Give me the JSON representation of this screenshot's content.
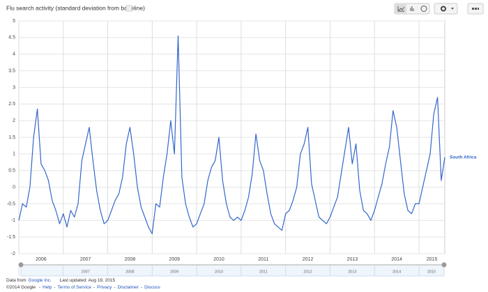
{
  "chart_data": {
    "type": "line",
    "title": "Flu search activity (standard deviation from baseline)",
    "x": [
      2006,
      2006.083,
      2006.167,
      2006.25,
      2006.333,
      2006.417,
      2006.5,
      2006.583,
      2006.667,
      2006.75,
      2006.833,
      2006.917,
      2007,
      2007.083,
      2007.167,
      2007.25,
      2007.333,
      2007.417,
      2007.5,
      2007.583,
      2007.667,
      2007.75,
      2007.833,
      2007.917,
      2008,
      2008.083,
      2008.167,
      2008.25,
      2008.333,
      2008.417,
      2008.5,
      2008.583,
      2008.667,
      2008.75,
      2008.833,
      2008.917,
      2009,
      2009.083,
      2009.167,
      2009.25,
      2009.333,
      2009.417,
      2009.5,
      2009.583,
      2009.667,
      2009.75,
      2009.833,
      2009.917,
      2010,
      2010.083,
      2010.167,
      2010.25,
      2010.333,
      2010.417,
      2010.5,
      2010.583,
      2010.667,
      2010.75,
      2010.833,
      2010.917,
      2011,
      2011.083,
      2011.167,
      2011.25,
      2011.333,
      2011.417,
      2011.5,
      2011.583,
      2011.667,
      2011.75,
      2011.833,
      2011.917,
      2012,
      2012.083,
      2012.167,
      2012.25,
      2012.333,
      2012.417,
      2012.5,
      2012.583,
      2012.667,
      2012.75,
      2012.833,
      2012.917,
      2013,
      2013.083,
      2013.167,
      2013.25,
      2013.333,
      2013.417,
      2013.5,
      2013.583,
      2013.667,
      2013.75,
      2013.833,
      2013.917,
      2014,
      2014.083,
      2014.167,
      2014.25,
      2014.333,
      2014.417,
      2014.5,
      2014.583,
      2014.667,
      2014.75,
      2014.833,
      2014.917,
      2015,
      2015.083,
      2015.167,
      2015.25,
      2015.333,
      2015.417,
      2015.5,
      2015.58
    ],
    "series": [
      {
        "name": "South Africa",
        "color": "#3366cc",
        "values": [
          -1.0,
          -0.5,
          -0.6,
          0.0,
          1.5,
          2.35,
          0.7,
          0.5,
          0.2,
          -0.4,
          -0.7,
          -1.1,
          -0.8,
          -1.2,
          -0.7,
          -0.9,
          -0.5,
          0.8,
          1.3,
          1.8,
          0.8,
          -0.1,
          -0.7,
          -1.1,
          -1.0,
          -0.7,
          -0.4,
          -0.2,
          0.3,
          1.3,
          1.8,
          1.0,
          0.0,
          -0.6,
          -0.9,
          -1.2,
          -1.4,
          -0.5,
          -0.6,
          0.3,
          1.0,
          2.0,
          1.0,
          4.55,
          0.3,
          -0.5,
          -0.9,
          -1.2,
          -1.1,
          -0.8,
          -0.5,
          0.2,
          0.6,
          0.8,
          1.5,
          0.2,
          -0.5,
          -0.9,
          -1.0,
          -0.9,
          -1.0,
          -0.7,
          -0.3,
          0.4,
          1.6,
          0.8,
          0.5,
          -0.2,
          -0.8,
          -1.1,
          -1.2,
          -1.3,
          -0.8,
          -0.7,
          -0.4,
          0.0,
          1.0,
          1.3,
          1.8,
          0.1,
          -0.4,
          -0.9,
          -1.0,
          -1.1,
          -0.9,
          -0.6,
          -0.3,
          0.4,
          1.1,
          1.8,
          0.7,
          1.3,
          -0.1,
          -0.7,
          -0.8,
          -1.0,
          -0.7,
          -0.3,
          0.1,
          0.7,
          1.2,
          2.3,
          1.8,
          0.8,
          -0.2,
          -0.7,
          -0.8,
          -0.5,
          -0.5,
          0.0,
          0.5,
          1.0,
          2.2,
          2.7,
          0.2,
          0.9
        ]
      }
    ],
    "xlim": [
      2006,
      2015.58
    ],
    "xticks": [
      2006,
      2007,
      2008,
      2009,
      2010,
      2011,
      2012,
      2013,
      2014,
      2015
    ],
    "ylim": [
      -2,
      5
    ],
    "yticks": [
      -2,
      -1.5,
      -1,
      -0.5,
      0,
      0.5,
      1,
      1.5,
      2,
      2.5,
      3,
      3.5,
      4,
      4.5,
      5
    ],
    "grid": true,
    "footer": {
      "source_prefix": "Data from",
      "source": "Google Inc.",
      "updated": "Last updated: Aug 19, 2015",
      "copyright": "©2014 Google",
      "separator": "-",
      "links": [
        "Help",
        "Terms of Service",
        "Privacy",
        "Disclaimer",
        "Discuss"
      ]
    }
  }
}
